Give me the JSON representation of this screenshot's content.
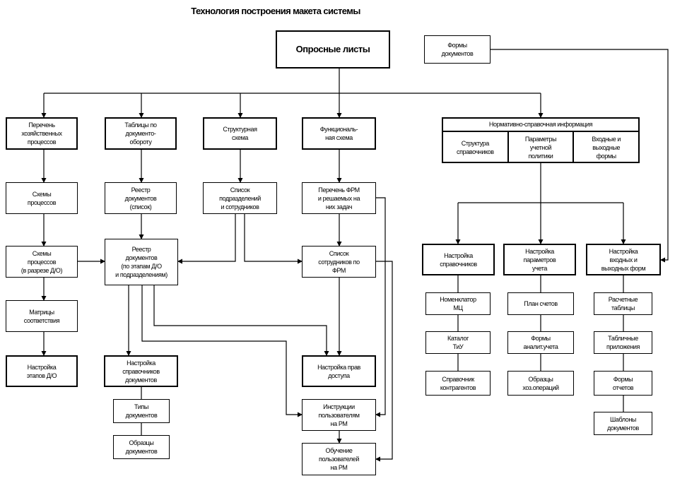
{
  "title": "Технология построения макета системы",
  "nodes": {
    "oprosnye": "Опросные листы",
    "formy_dok": "Формы\nдокументов",
    "perechen_proc": "Перечень\nхозяйственных\nпроцессов",
    "tablicy_do": "Таблицы по\nдокументо-\nобороту",
    "struct_schema": "Структурная\nсхема",
    "func_schema": "Функциональ-\nная схема",
    "shemy_proc": "Схемы\nпроцессов",
    "reestr_spisok": "Реестр\nдокументов\n(список)",
    "spisok_podr": "Список\nподразделений\nи сотрудников",
    "perechen_frm": "Перечень ФРМ\nи решаемых на\nних задач",
    "shemy_razrez": "Схемы\nпроцессов\n(в разрезе Д/О)",
    "reestr_etap": "Реестр\nдокументов\n(по этапам Д/О\nи подразделениям)",
    "spisok_sotr": "Список\nсотрудников по\nФРМ",
    "matricy": "Матрицы\nсоответствия",
    "nastr_etapov": "Настройка\nэтапов Д/О",
    "nastr_sprav_dok": "Настройка\nсправочников\nдокументов",
    "tipy_dok": "Типы\nдокументов",
    "obrazcy_dok": "Образцы\nдокументов",
    "nastr_prav": "Настройка прав\nдоступа",
    "instrukcii": "Инструкции\nпользователям\nна РМ",
    "obuchenie": "Обучение\nпользователей\nна РМ",
    "nastr_sprav": "Настройка\nсправочников",
    "nastr_param": "Настройка\nпараметров\nучета",
    "nastr_form": "Настройка\nвходных и\nвыходных форм",
    "nomenklator": "Номенклатор\nМЦ",
    "katalog": "Каталог\nТиУ",
    "sprav_kontr": "Справочник\nконтрагентов",
    "plan_schetov": "План счетов",
    "formy_analit": "Формы\nаналит.учета",
    "obrazcy_hoz": "Образцы\nхоз.операций",
    "raschet_tabl": "Расчетные\nтаблицы",
    "tabl_pril": "Табличные\nприложения",
    "formy_otch": "Формы\nотчетов",
    "shablony_dok": "Шаблоны\nдокументов"
  },
  "nsi": {
    "header": "Нормативно-справочная информация",
    "cells": [
      "Структура\nсправочников",
      "Параметры\nучетной\nполитики",
      "Входные и\nвыходные\nформы"
    ]
  }
}
